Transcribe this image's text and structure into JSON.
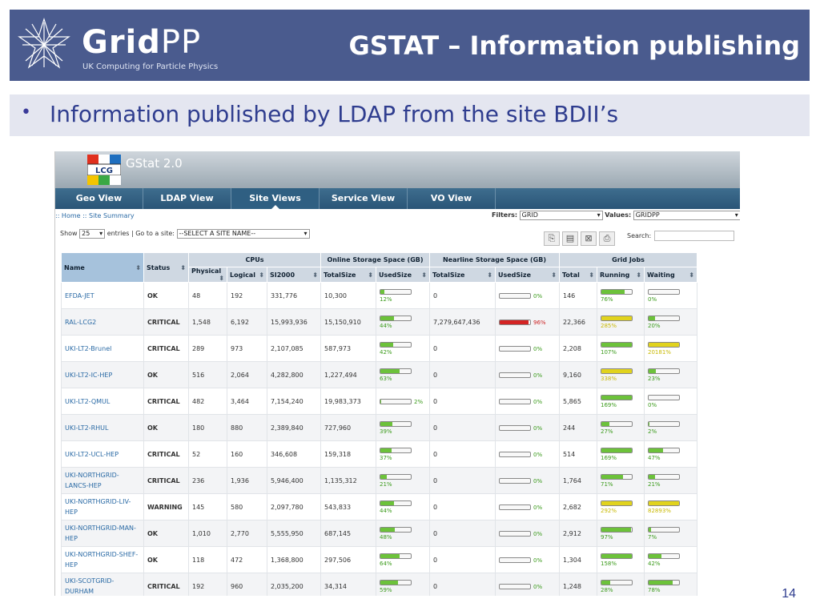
{
  "slide": {
    "logo_word_bold": "Grid",
    "logo_word_light": "PP",
    "logo_sub": "UK Computing for Particle Physics",
    "title": "GSTAT – Information publishing",
    "bullet": "Information published by LDAP from the site BDII’s",
    "page_number": "14"
  },
  "gstat": {
    "logo_text": "LCG",
    "title": "GStat 2.0",
    "nav": [
      "Geo View",
      "LDAP View",
      "Site Views",
      "Service View",
      "VO View"
    ],
    "active_nav": "Site Views",
    "breadcrumb": ":: Home :: Site Summary",
    "filters_label": "Filters:",
    "filter_value": "GRID",
    "values_label": "Values:",
    "values_value": "GRIDPP",
    "show_label": "Show",
    "show_value": "25",
    "entries_label": "entries | Go to a site:",
    "site_select": "--SELECT A SITE NAME--",
    "search_label": "Search:",
    "group_headers": {
      "cpus": "CPUs",
      "online": "Online Storage Space (GB)",
      "nearline": "Nearline Storage Space (GB)",
      "jobs": "Grid Jobs"
    },
    "column_headers": {
      "name": "Name",
      "status": "Status",
      "physical": "Physical",
      "logical": "Logical",
      "si2000": "SI2000",
      "on_total": "TotalSize",
      "on_used": "UsedSize",
      "nl_total": "TotalSize",
      "nl_used": "UsedSize",
      "jobs_total": "Total",
      "running": "Running",
      "waiting": "Waiting"
    },
    "rows": [
      {
        "name": "EFDA-JET",
        "status": "OK",
        "physical": "48",
        "logical": "192",
        "si2000": "331,776",
        "on_total": "10,300",
        "on_used": "12%",
        "on_used_v": 12,
        "nl_total": "0",
        "nl_used": "0%",
        "nl_used_v": 0,
        "jobs_total": "146",
        "running": "76%",
        "running_v": 76,
        "waiting": "0%",
        "waiting_v": 0
      },
      {
        "name": "RAL-LCG2",
        "status": "CRITICAL",
        "physical": "1,548",
        "logical": "6,192",
        "si2000": "15,993,936",
        "on_total": "15,150,910",
        "on_used": "44%",
        "on_used_v": 44,
        "nl_total": "7,279,647,436",
        "nl_used": "96%",
        "nl_used_v": 96,
        "jobs_total": "22,366",
        "running": "285%",
        "running_v": 285,
        "waiting": "20%",
        "waiting_v": 20
      },
      {
        "name": "UKI-LT2-Brunel",
        "status": "CRITICAL",
        "physical": "289",
        "logical": "973",
        "si2000": "2,107,085",
        "on_total": "587,973",
        "on_used": "42%",
        "on_used_v": 42,
        "nl_total": "0",
        "nl_used": "0%",
        "nl_used_v": 0,
        "jobs_total": "2,208",
        "running": "107%",
        "running_v": 107,
        "waiting": "20181%",
        "waiting_v": 20181
      },
      {
        "name": "UKI-LT2-IC-HEP",
        "status": "OK",
        "physical": "516",
        "logical": "2,064",
        "si2000": "4,282,800",
        "on_total": "1,227,494",
        "on_used": "63%",
        "on_used_v": 63,
        "nl_total": "0",
        "nl_used": "0%",
        "nl_used_v": 0,
        "jobs_total": "9,160",
        "running": "338%",
        "running_v": 338,
        "waiting": "23%",
        "waiting_v": 23
      },
      {
        "name": "UKI-LT2-QMUL",
        "status": "CRITICAL",
        "physical": "482",
        "logical": "3,464",
        "si2000": "7,154,240",
        "on_total": "19,983,373",
        "on_used": "2%",
        "on_used_v": 2,
        "nl_total": "0",
        "nl_used": "0%",
        "nl_used_v": 0,
        "jobs_total": "5,865",
        "running": "169%",
        "running_v": 169,
        "waiting": "0%",
        "waiting_v": 0
      },
      {
        "name": "UKI-LT2-RHUL",
        "status": "OK",
        "physical": "180",
        "logical": "880",
        "si2000": "2,389,840",
        "on_total": "727,960",
        "on_used": "39%",
        "on_used_v": 39,
        "nl_total": "0",
        "nl_used": "0%",
        "nl_used_v": 0,
        "jobs_total": "244",
        "running": "27%",
        "running_v": 27,
        "waiting": "2%",
        "waiting_v": 2
      },
      {
        "name": "UKI-LT2-UCL-HEP",
        "status": "CRITICAL",
        "physical": "52",
        "logical": "160",
        "si2000": "346,608",
        "on_total": "159,318",
        "on_used": "37%",
        "on_used_v": 37,
        "nl_total": "0",
        "nl_used": "0%",
        "nl_used_v": 0,
        "jobs_total": "514",
        "running": "169%",
        "running_v": 169,
        "waiting": "47%",
        "waiting_v": 47
      },
      {
        "name": "UKI-NORTHGRID-LANCS-HEP",
        "status": "CRITICAL",
        "physical": "236",
        "logical": "1,936",
        "si2000": "5,946,400",
        "on_total": "1,135,312",
        "on_used": "21%",
        "on_used_v": 21,
        "nl_total": "0",
        "nl_used": "0%",
        "nl_used_v": 0,
        "jobs_total": "1,764",
        "running": "71%",
        "running_v": 71,
        "waiting": "21%",
        "waiting_v": 21
      },
      {
        "name": "UKI-NORTHGRID-LIV-HEP",
        "status": "WARNING",
        "physical": "145",
        "logical": "580",
        "si2000": "2,097,780",
        "on_total": "543,833",
        "on_used": "44%",
        "on_used_v": 44,
        "nl_total": "0",
        "nl_used": "0%",
        "nl_used_v": 0,
        "jobs_total": "2,682",
        "running": "292%",
        "running_v": 292,
        "waiting": "82893%",
        "waiting_v": 82893
      },
      {
        "name": "UKI-NORTHGRID-MAN-HEP",
        "status": "OK",
        "physical": "1,010",
        "logical": "2,770",
        "si2000": "5,555,950",
        "on_total": "687,145",
        "on_used": "48%",
        "on_used_v": 48,
        "nl_total": "0",
        "nl_used": "0%",
        "nl_used_v": 0,
        "jobs_total": "2,912",
        "running": "97%",
        "running_v": 97,
        "waiting": "7%",
        "waiting_v": 7
      },
      {
        "name": "UKI-NORTHGRID-SHEF-HEP",
        "status": "OK",
        "physical": "118",
        "logical": "472",
        "si2000": "1,368,800",
        "on_total": "297,506",
        "on_used": "64%",
        "on_used_v": 64,
        "nl_total": "0",
        "nl_used": "0%",
        "nl_used_v": 0,
        "jobs_total": "1,304",
        "running": "158%",
        "running_v": 158,
        "waiting": "42%",
        "waiting_v": 42
      },
      {
        "name": "UKI-SCOTGRID-DURHAM",
        "status": "CRITICAL",
        "physical": "192",
        "logical": "960",
        "si2000": "2,035,200",
        "on_total": "34,314",
        "on_used": "59%",
        "on_used_v": 59,
        "nl_total": "0",
        "nl_used": "0%",
        "nl_used_v": 0,
        "jobs_total": "1,248",
        "running": "28%",
        "running_v": 28,
        "waiting": "78%",
        "waiting_v": 78
      }
    ]
  },
  "colors": {
    "header_bg": "#4a5b8e",
    "ok": "#3a9a1a",
    "critical": "#cc2222",
    "warning": "#c8b800",
    "bar_green": "#6cc23a",
    "bar_yellow": "#e1d31d",
    "bar_red": "#d42424"
  }
}
